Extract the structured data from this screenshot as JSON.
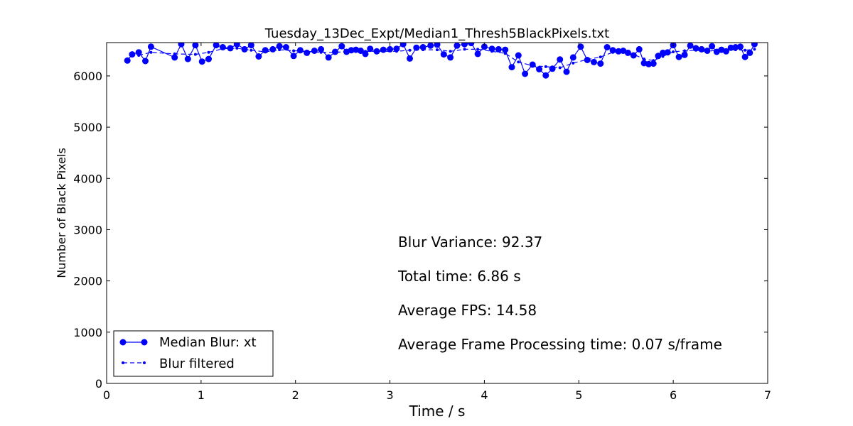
{
  "chart_data": {
    "type": "line",
    "title": "Tuesday_13Dec_Expt/Median1_Thresh5BlackPixels.txt",
    "xlabel": "Time / s",
    "ylabel": "Number of Black Pixels",
    "xlim": [
      0,
      7
    ],
    "ylim": [
      0,
      6650
    ],
    "xticks": [
      0,
      1,
      2,
      3,
      4,
      5,
      6,
      7
    ],
    "yticks": [
      0,
      1000,
      2000,
      3000,
      4000,
      5000,
      6000
    ],
    "grid": false,
    "legend_position": "lower-left",
    "annotations": [
      "Blur Variance: 92.37",
      "Total time: 6.86 s",
      "Average FPS: 14.58",
      "Average Frame Processing time: 0.07 s/frame"
    ],
    "series": [
      {
        "name": "Median Blur: xt",
        "style": "solid-circle",
        "color": "#0000ff",
        "x": [
          0.22,
          0.27,
          0.34,
          0.41,
          0.47,
          0.72,
          0.79,
          0.86,
          0.94,
          1.01,
          1.08,
          1.16,
          1.23,
          1.31,
          1.38,
          1.46,
          1.53,
          1.61,
          1.68,
          1.76,
          1.83,
          1.9,
          1.98,
          2.05,
          2.12,
          2.2,
          2.27,
          2.35,
          2.42,
          2.49,
          2.54,
          2.59,
          2.64,
          2.69,
          2.74,
          2.79,
          2.86,
          2.93,
          3.0,
          3.07,
          3.14,
          3.21,
          3.28,
          3.35,
          3.43,
          3.5,
          3.57,
          3.64,
          3.71,
          3.79,
          3.86,
          3.93,
          4.0,
          4.08,
          4.15,
          4.22,
          4.29,
          4.36,
          4.43,
          4.51,
          4.58,
          4.65,
          4.72,
          4.8,
          4.87,
          4.94,
          5.02,
          5.09,
          5.16,
          5.23,
          5.3,
          5.36,
          5.42,
          5.47,
          5.52,
          5.58,
          5.64,
          5.69,
          5.74,
          5.79,
          5.84,
          5.89,
          5.94,
          6.0,
          6.06,
          6.12,
          6.18,
          6.24,
          6.3,
          6.36,
          6.41,
          6.46,
          6.51,
          6.56,
          6.61,
          6.66,
          6.71,
          6.76,
          6.81,
          6.86
        ],
        "y": [
          6300,
          6420,
          6460,
          6290,
          6570,
          6360,
          6620,
          6330,
          6600,
          6280,
          6330,
          6600,
          6560,
          6540,
          6620,
          6520,
          6600,
          6380,
          6500,
          6520,
          6580,
          6560,
          6390,
          6500,
          6450,
          6490,
          6520,
          6360,
          6470,
          6580,
          6470,
          6500,
          6510,
          6490,
          6430,
          6530,
          6480,
          6510,
          6520,
          6530,
          6620,
          6340,
          6550,
          6560,
          6590,
          6610,
          6420,
          6360,
          6590,
          6620,
          6640,
          6430,
          6570,
          6530,
          6520,
          6510,
          6170,
          6400,
          6040,
          6220,
          6130,
          6010,
          6140,
          6320,
          6080,
          6360,
          6570,
          6310,
          6270,
          6240,
          6560,
          6500,
          6480,
          6490,
          6450,
          6400,
          6520,
          6250,
          6230,
          6240,
          6390,
          6450,
          6460,
          6600,
          6370,
          6410,
          6590,
          6540,
          6520,
          6490,
          6580,
          6470,
          6510,
          6480,
          6550,
          6560,
          6570,
          6370,
          6450,
          6620
        ]
      },
      {
        "name": "Blur filtered",
        "style": "dashed-dot",
        "color": "#0000ff",
        "x": [
          0.34,
          0.47,
          0.72,
          0.94,
          1.08,
          1.23,
          1.38,
          1.53,
          1.68,
          1.83,
          1.98,
          2.12,
          2.27,
          2.42,
          2.59,
          2.74,
          2.93,
          3.07,
          3.21,
          3.35,
          3.5,
          3.64,
          3.79,
          3.93,
          4.08,
          4.22,
          4.36,
          4.51,
          4.65,
          4.8,
          4.94,
          5.09,
          5.23,
          5.36,
          5.47,
          5.58,
          5.69,
          5.79,
          5.89,
          6.0,
          6.12,
          6.24,
          6.36,
          6.46,
          6.56,
          6.66,
          6.76,
          6.86
        ],
        "y": [
          6400,
          6460,
          6430,
          6420,
          6460,
          6530,
          6540,
          6500,
          6470,
          6510,
          6490,
          6480,
          6460,
          6460,
          6480,
          6480,
          6480,
          6480,
          6500,
          6510,
          6510,
          6480,
          6520,
          6520,
          6480,
          6440,
          6270,
          6200,
          6180,
          6160,
          6250,
          6320,
          6370,
          6460,
          6460,
          6420,
          6330,
          6300,
          6380,
          6470,
          6490,
          6500,
          6480,
          6500,
          6500,
          6510,
          6500,
          6520
        ]
      }
    ]
  }
}
